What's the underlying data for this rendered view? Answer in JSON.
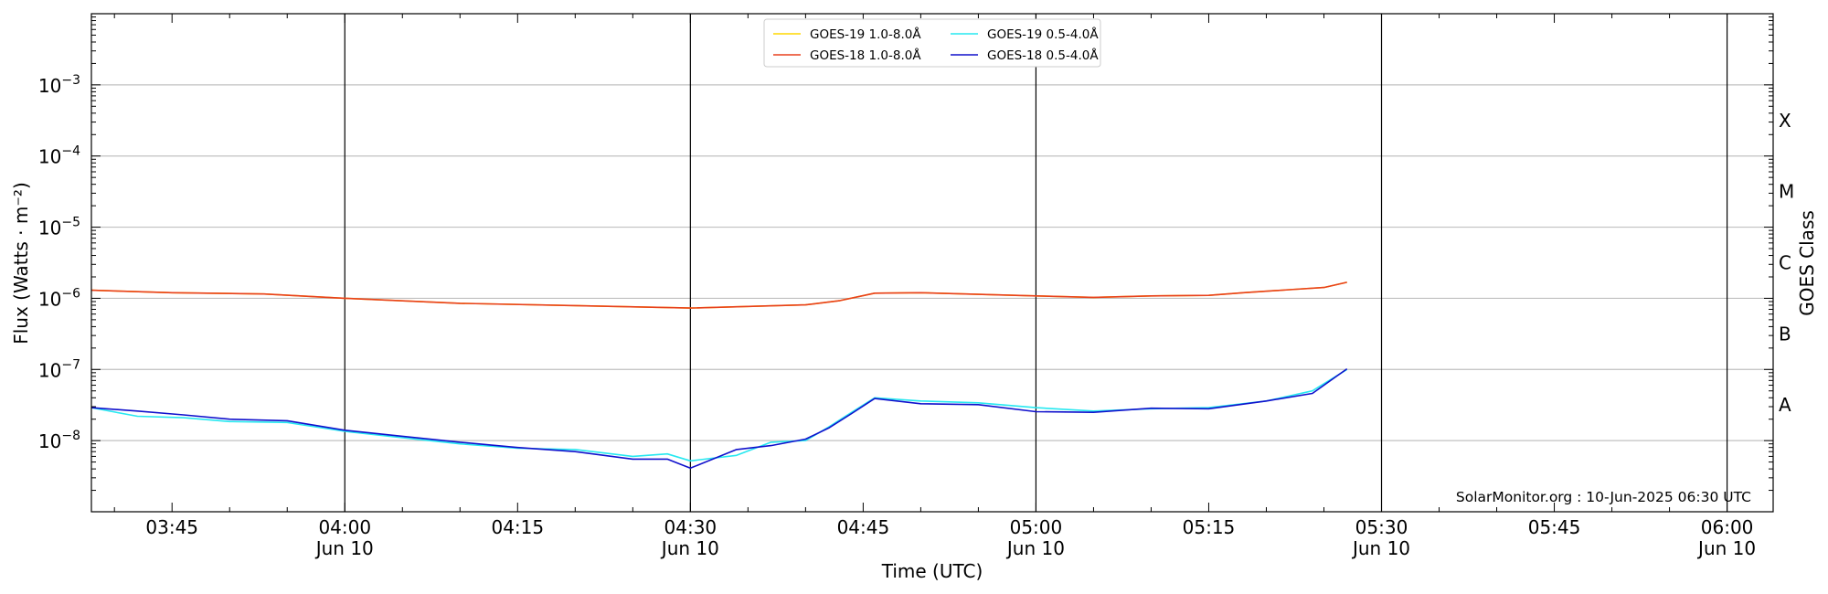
{
  "chart_data": {
    "type": "line",
    "xlabel": "Time (UTC)",
    "ylabel": "Flux (Watts · m⁻²)",
    "right_label": "GOES Class",
    "credit": "SolarMonitor.org : 10-Jun-2025 06:30 UTC",
    "xlim": [
      "03:38",
      "06:04"
    ],
    "ylim": [
      1e-09,
      0.01
    ],
    "yscale": "log",
    "grid": "horizontal",
    "legend_position": "top-center",
    "x_ticks": [
      {
        "time": "03:45",
        "label": "03:45",
        "sub": ""
      },
      {
        "time": "04:00",
        "label": "04:00",
        "sub": "Jun 10"
      },
      {
        "time": "04:15",
        "label": "04:15",
        "sub": ""
      },
      {
        "time": "04:30",
        "label": "04:30",
        "sub": "Jun 10"
      },
      {
        "time": "04:45",
        "label": "04:45",
        "sub": ""
      },
      {
        "time": "05:00",
        "label": "05:00",
        "sub": "Jun 10"
      },
      {
        "time": "05:15",
        "label": "05:15",
        "sub": ""
      },
      {
        "time": "05:30",
        "label": "05:30",
        "sub": "Jun 10"
      },
      {
        "time": "05:45",
        "label": "05:45",
        "sub": ""
      },
      {
        "time": "06:00",
        "label": "06:00",
        "sub": "Jun 10"
      }
    ],
    "day_lines": [
      "04:00",
      "04:30",
      "05:00",
      "05:30",
      "06:00"
    ],
    "y_ticks": [
      {
        "exp": -8,
        "label": "10",
        "sup": "−8"
      },
      {
        "exp": -7,
        "label": "10",
        "sup": "−7"
      },
      {
        "exp": -6,
        "label": "10",
        "sup": "−6"
      },
      {
        "exp": -5,
        "label": "10",
        "sup": "−5"
      },
      {
        "exp": -4,
        "label": "10",
        "sup": "−4"
      },
      {
        "exp": -3,
        "label": "10",
        "sup": "−3"
      }
    ],
    "goes_classes": [
      {
        "label": "A",
        "exp": -7.5
      },
      {
        "label": "B",
        "exp": -6.5
      },
      {
        "label": "C",
        "exp": -5.5
      },
      {
        "label": "M",
        "exp": -4.5
      },
      {
        "label": "X",
        "exp": -3.5
      }
    ],
    "series": [
      {
        "name": "GOES-19 1.0-8.0Å",
        "color": "#ffd700",
        "x": [
          "03:38",
          "03:45",
          "03:53",
          "04:00",
          "04:10",
          "04:20",
          "04:30",
          "04:40",
          "04:43",
          "04:46",
          "04:50",
          "05:00",
          "05:05",
          "05:10",
          "05:15",
          "05:18",
          "05:22",
          "05:25",
          "05:27"
        ],
        "y": [
          1.3e-06,
          1.2e-06,
          1.15e-06,
          1e-06,
          8.5e-07,
          7.9e-07,
          7.3e-07,
          8.1e-07,
          9.3e-07,
          1.18e-06,
          1.2e-06,
          1.08e-06,
          1.03e-06,
          1.08e-06,
          1.1e-06,
          1.2e-06,
          1.32e-06,
          1.42e-06,
          1.68e-06
        ]
      },
      {
        "name": "GOES-18 1.0-8.0Å",
        "color": "#e8401e",
        "x": [
          "03:38",
          "03:45",
          "03:53",
          "04:00",
          "04:10",
          "04:20",
          "04:30",
          "04:40",
          "04:43",
          "04:46",
          "04:50",
          "05:00",
          "05:05",
          "05:10",
          "05:15",
          "05:18",
          "05:22",
          "05:25",
          "05:27"
        ],
        "y": [
          1.3e-06,
          1.2e-06,
          1.15e-06,
          1e-06,
          8.5e-07,
          7.9e-07,
          7.3e-07,
          8.1e-07,
          9.3e-07,
          1.18e-06,
          1.2e-06,
          1.08e-06,
          1.03e-06,
          1.08e-06,
          1.1e-06,
          1.2e-06,
          1.32e-06,
          1.42e-06,
          1.68e-06
        ]
      },
      {
        "name": "GOES-19 0.5-4.0Å",
        "color": "#27e8f0",
        "x": [
          "03:38",
          "03:42",
          "03:46",
          "03:50",
          "03:55",
          "04:00",
          "04:05",
          "04:10",
          "04:15",
          "04:20",
          "04:25",
          "04:28",
          "04:30",
          "04:34",
          "04:37",
          "04:40",
          "04:42",
          "04:44",
          "04:46",
          "04:50",
          "04:55",
          "05:00",
          "05:05",
          "05:10",
          "05:15",
          "05:20",
          "05:24",
          "05:27"
        ],
        "y": [
          2.9e-08,
          2.2e-08,
          2.1e-08,
          1.85e-08,
          1.8e-08,
          1.35e-08,
          1.1e-08,
          9e-09,
          7.8e-09,
          7.5e-09,
          6e-09,
          6.5e-09,
          5.2e-09,
          6.2e-09,
          9.5e-09,
          1e-08,
          1.55e-08,
          2.5e-08,
          4e-08,
          3.6e-08,
          3.4e-08,
          2.9e-08,
          2.6e-08,
          2.8e-08,
          2.9e-08,
          3.6e-08,
          5e-08,
          1e-07
        ]
      },
      {
        "name": "GOES-18 0.5-4.0Å",
        "color": "#1010cc",
        "x": [
          "03:38",
          "03:42",
          "03:46",
          "03:50",
          "03:55",
          "04:00",
          "04:05",
          "04:10",
          "04:15",
          "04:20",
          "04:25",
          "04:28",
          "04:30",
          "04:34",
          "04:37",
          "04:40",
          "04:42",
          "04:44",
          "04:46",
          "04:50",
          "04:55",
          "05:00",
          "05:05",
          "05:10",
          "05:15",
          "05:20",
          "05:24",
          "05:27"
        ],
        "y": [
          2.9e-08,
          2.6e-08,
          2.3e-08,
          2e-08,
          1.9e-08,
          1.4e-08,
          1.15e-08,
          9.5e-09,
          8e-09,
          7e-09,
          5.5e-09,
          5.5e-09,
          4.1e-09,
          7.5e-09,
          8.5e-09,
          1.05e-08,
          1.5e-08,
          2.4e-08,
          3.9e-08,
          3.3e-08,
          3.2e-08,
          2.55e-08,
          2.5e-08,
          2.85e-08,
          2.8e-08,
          3.6e-08,
          4.6e-08,
          1.02e-07
        ]
      }
    ],
    "legend": {
      "entries": [
        {
          "name": "GOES-19 1.0-8.0Å",
          "color": "#ffd700"
        },
        {
          "name": "GOES-18 1.0-8.0Å",
          "color": "#e8401e"
        },
        {
          "name": "GOES-19 0.5-4.0Å",
          "color": "#27e8f0"
        },
        {
          "name": "GOES-18 0.5-4.0Å",
          "color": "#1010cc"
        }
      ]
    }
  }
}
